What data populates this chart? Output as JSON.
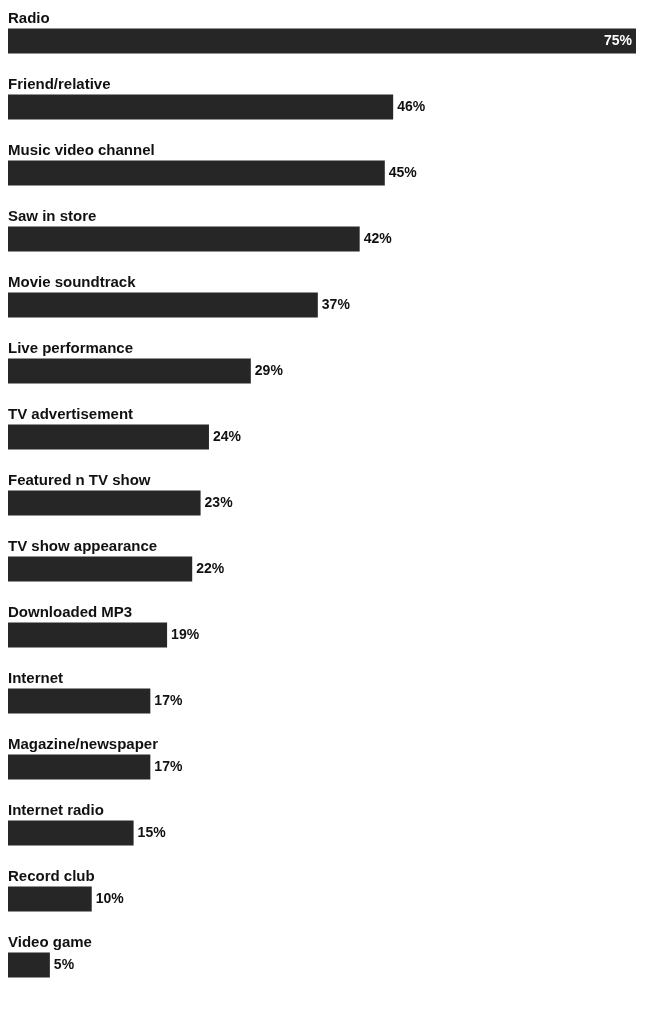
{
  "chart_data": {
    "type": "bar",
    "orientation": "horizontal",
    "color": "#262626",
    "categories": [
      "Radio",
      "Friend/relative",
      "Music video channel",
      "Saw in store",
      "Movie soundtrack",
      "Live performance",
      "TV advertisement",
      "Featured n TV show",
      "TV show appearance",
      "Downloaded MP3",
      "Internet",
      "Magazine/newspaper",
      "Internet radio",
      "Record club",
      "Video game"
    ],
    "values": [
      75,
      46,
      45,
      42,
      37,
      29,
      24,
      23,
      22,
      19,
      17,
      17,
      15,
      10,
      5
    ],
    "value_labels": [
      "75%",
      "46%",
      "45%",
      "42%",
      "37%",
      "29%",
      "24%",
      "23%",
      "22%",
      "19%",
      "17%",
      "17%",
      "15%",
      "10%",
      "5%"
    ]
  }
}
